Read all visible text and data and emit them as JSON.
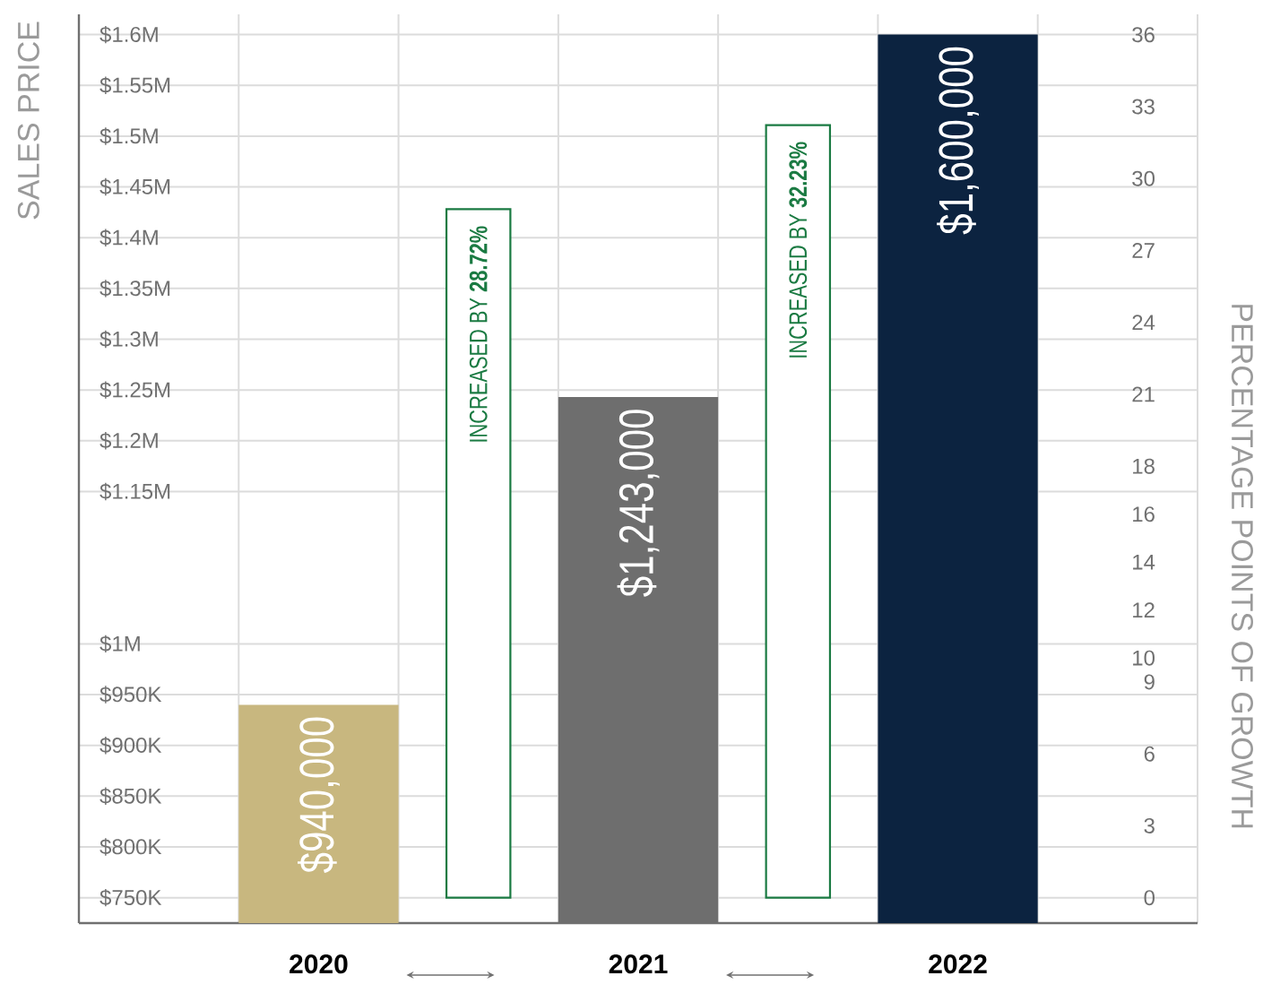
{
  "chart_data": {
    "type": "bar",
    "ylabel": "SALES PRICE",
    "y2label": "PERCENTAGE POINTS OF GROWTH",
    "categories": [
      "2020",
      null,
      "2021",
      null,
      "2022"
    ],
    "series": [
      {
        "colors": [
          "#c8b77f",
          null,
          "#6e6e6e",
          null,
          "#0c2340"
        ],
        "values": [
          940000,
          null,
          1243000,
          null,
          1600000
        ],
        "value_labels": [
          "$940,000",
          null,
          "$1,243,000",
          null,
          "$1,600,000"
        ]
      },
      {
        "axis": "y2",
        "color": "#1a7a42",
        "values": [
          null,
          28.72,
          null,
          32.23,
          null
        ],
        "value_labels": [
          null,
          "INCREASED BY **28.72%**",
          null,
          "INCREASED BY **32.23%**",
          null
        ]
      }
    ],
    "ylim": [
      725000,
      1620000
    ],
    "yticks": [
      {
        "value": 750000,
        "label": "$750K"
      },
      {
        "value": 800000,
        "label": "$800K"
      },
      {
        "value": 850000,
        "label": "$850K"
      },
      {
        "value": 900000,
        "label": "$900K"
      },
      {
        "value": 950000,
        "label": "$950K"
      },
      {
        "value": 1000000,
        "label": "$1M"
      },
      {
        "value": 1150000,
        "label": "$1.15M"
      },
      {
        "value": 1200000,
        "label": "$1.2M"
      },
      {
        "value": 1250000,
        "label": "$1.25M"
      },
      {
        "value": 1300000,
        "label": "$1.3M"
      },
      {
        "value": 1350000,
        "label": "$1.35M"
      },
      {
        "value": 1400000,
        "label": "$1.4M"
      },
      {
        "value": 1450000,
        "label": "$1.45M"
      },
      {
        "value": 1500000,
        "label": "$1.5M"
      },
      {
        "value": 1550000,
        "label": "$1.55M"
      },
      {
        "value": 1600000,
        "label": "$1.6M"
      }
    ],
    "y2lim": [
      -1.06,
      36.85
    ],
    "y2ticks": [
      0,
      3,
      6,
      9,
      10,
      12,
      14,
      16,
      18,
      21,
      24,
      27,
      30,
      33,
      36
    ],
    "grid": true
  }
}
